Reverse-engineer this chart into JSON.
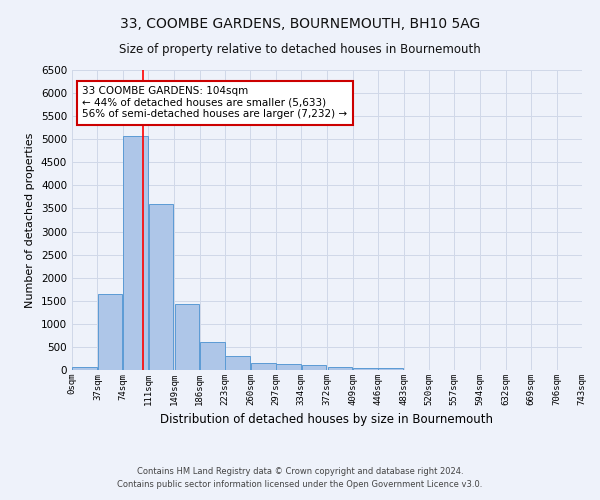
{
  "title": "33, COOMBE GARDENS, BOURNEMOUTH, BH10 5AG",
  "subtitle": "Size of property relative to detached houses in Bournemouth",
  "xlabel": "Distribution of detached houses by size in Bournemouth",
  "ylabel": "Number of detached properties",
  "footnote1": "Contains HM Land Registry data © Crown copyright and database right 2024.",
  "footnote2": "Contains public sector information licensed under the Open Government Licence v3.0.",
  "bar_left_edges": [
    0,
    37,
    74,
    111,
    149,
    186,
    223,
    260,
    297,
    334,
    372,
    409,
    446,
    483,
    520,
    557,
    594,
    632,
    669,
    706
  ],
  "bar_heights": [
    75,
    1650,
    5075,
    3600,
    1420,
    600,
    310,
    160,
    125,
    100,
    55,
    50,
    45,
    10,
    8,
    5,
    3,
    2,
    1,
    1
  ],
  "bin_width": 37,
  "bar_color": "#aec6e8",
  "bar_edge_color": "#5b9bd5",
  "grid_color": "#d0d8e8",
  "background_color": "#eef2fa",
  "red_line_x": 104,
  "annotation_text": "33 COOMBE GARDENS: 104sqm\n← 44% of detached houses are smaller (5,633)\n56% of semi-detached houses are larger (7,232) →",
  "annotation_box_color": "#ffffff",
  "annotation_border_color": "#cc0000",
  "ylim": [
    0,
    6500
  ],
  "xtick_labels": [
    "0sqm",
    "37sqm",
    "74sqm",
    "111sqm",
    "149sqm",
    "186sqm",
    "223sqm",
    "260sqm",
    "297sqm",
    "334sqm",
    "372sqm",
    "409sqm",
    "446sqm",
    "483sqm",
    "520sqm",
    "557sqm",
    "594sqm",
    "632sqm",
    "669sqm",
    "706sqm",
    "743sqm"
  ],
  "xtick_positions": [
    0,
    37,
    74,
    111,
    149,
    186,
    223,
    260,
    297,
    334,
    372,
    409,
    446,
    483,
    520,
    557,
    594,
    632,
    669,
    706,
    743
  ],
  "title_fontsize": 10,
  "subtitle_fontsize": 8.5,
  "footnote_fontsize": 6.0
}
